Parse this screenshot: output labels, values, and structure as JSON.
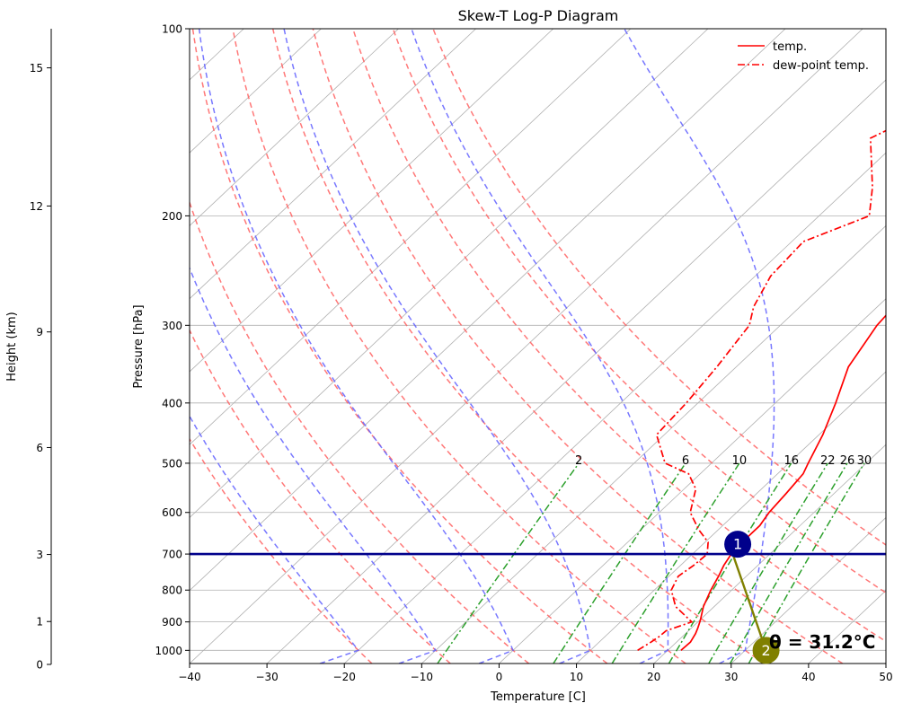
{
  "chart_data": {
    "type": "line",
    "title": "Skew-T Log-P Diagram",
    "xlabel": "Temperature [C]",
    "ylabel": "Pressure [hPa]",
    "height_label": "Height (km)",
    "xlim": [
      -40,
      50
    ],
    "ylim_hpa": [
      1050,
      100
    ],
    "y_scale": "log",
    "x_ticks": [
      -40,
      -30,
      -20,
      -10,
      0,
      10,
      20,
      30,
      40,
      50
    ],
    "x_tick_labels": [
      "−40",
      "−30",
      "−20",
      "−10",
      "0",
      "10",
      "20",
      "30",
      "40",
      "50"
    ],
    "p_ticks": [
      100,
      200,
      300,
      400,
      500,
      600,
      700,
      800,
      900,
      1000
    ],
    "p_tick_labels": [
      "100",
      "200",
      "300",
      "400",
      "500",
      "600",
      "700",
      "800",
      "900",
      "1000"
    ],
    "height_ticks_km": [
      0,
      1,
      3,
      6,
      9,
      12,
      15
    ],
    "height_tick_labels": [
      "0",
      "1",
      "3",
      "6",
      "9",
      "12",
      "15"
    ],
    "grid": true,
    "legend_position": "top-right",
    "legend": [
      {
        "label": "temp.",
        "color": "#ff0000",
        "style": "solid"
      },
      {
        "label": "dew-point temp.",
        "color": "#ff0000",
        "style": "dashdot"
      }
    ],
    "series": [
      {
        "name": "temp.",
        "color": "#ff0000",
        "style": "solid",
        "points": [
          [
            1000,
            21.7
          ],
          [
            970,
            21.8
          ],
          [
            940,
            21.3
          ],
          [
            920,
            20.8
          ],
          [
            895,
            20.1
          ],
          [
            850,
            18.6
          ],
          [
            800,
            17.3
          ],
          [
            760,
            16.4
          ],
          [
            730,
            15.6
          ],
          [
            700,
            15.0
          ],
          [
            670,
            14.8
          ],
          [
            630,
            14.8
          ],
          [
            600,
            14.2
          ],
          [
            560,
            13.8
          ],
          [
            520,
            13.3
          ],
          [
            500,
            12.5
          ],
          [
            450,
            10.5
          ],
          [
            400,
            7.8
          ],
          [
            350,
            4.5
          ],
          [
            300,
            2.5
          ],
          [
            250,
            1.5
          ],
          [
            200,
            0.5
          ],
          [
            180,
            3.5
          ],
          [
            160,
            13.5
          ],
          [
            130,
            15.5
          ],
          [
            100,
            18.0
          ]
        ]
      },
      {
        "name": "dew-point temp.",
        "color": "#ff0000",
        "style": "dashdot",
        "points": [
          [
            1000,
            16.1
          ],
          [
            970,
            16.7
          ],
          [
            950,
            17.0
          ],
          [
            930,
            17.1
          ],
          [
            900,
            19.2
          ],
          [
            850,
            15.0
          ],
          [
            800,
            12.2
          ],
          [
            760,
            11.2
          ],
          [
            730,
            11.7
          ],
          [
            700,
            11.9
          ],
          [
            670,
            10.4
          ],
          [
            640,
            7.5
          ],
          [
            600,
            4.0
          ],
          [
            550,
            1.5
          ],
          [
            520,
            -1.5
          ],
          [
            500,
            -6.0
          ],
          [
            450,
            -11.0
          ],
          [
            400,
            -11.5
          ],
          [
            350,
            -12.5
          ],
          [
            300,
            -14.0
          ],
          [
            280,
            -16.0
          ],
          [
            250,
            -18.0
          ],
          [
            220,
            -18.5
          ],
          [
            200,
            -13.5
          ],
          [
            180,
            -17.0
          ],
          [
            150,
            -24.0
          ],
          [
            130,
            -19.0
          ],
          [
            110,
            -10.5
          ],
          [
            100,
            -6.5
          ]
        ]
      }
    ],
    "mixing_ratio_labels": [
      "2",
      "6",
      "10",
      "16",
      "22",
      "26",
      "30"
    ],
    "mixing_ratio_values": [
      2,
      6,
      10,
      16,
      22,
      26,
      30
    ],
    "dry_adiabats_C": [
      -20,
      -10,
      0,
      10,
      20,
      30,
      40,
      50,
      60,
      70
    ],
    "moist_adiabats_C": [
      -20,
      -10,
      0,
      10,
      20,
      30
    ],
    "reference_pressure_hpa": 700,
    "markers": [
      {
        "label": "1",
        "p": 675,
        "t": 14.5,
        "color": "#00008b"
      },
      {
        "label": "2",
        "p": 1000,
        "t": 32.7,
        "color": "#808000"
      }
    ],
    "annotation": "θ = 31.2°C"
  }
}
